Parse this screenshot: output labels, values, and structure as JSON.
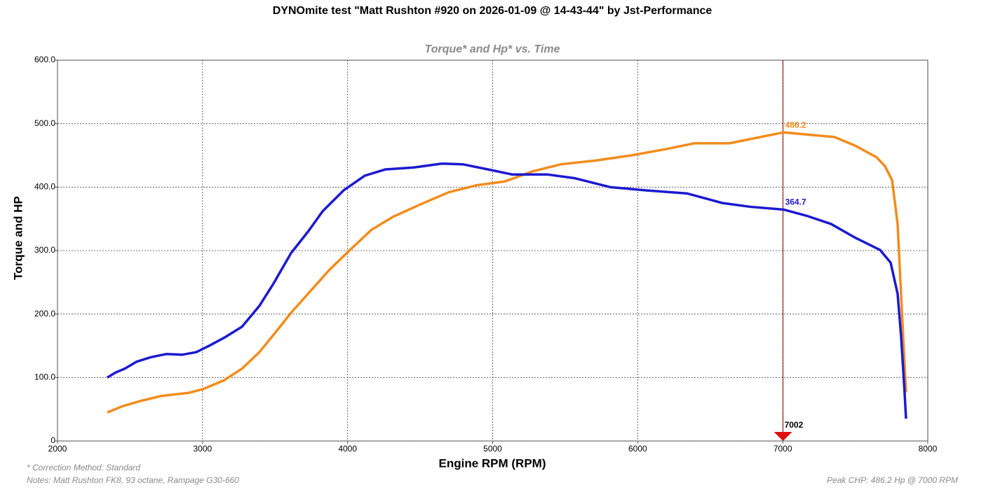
{
  "chart_data": {
    "type": "line",
    "title": "DYNOmite test \"Matt Rushton #920 on 2026-01-09 @ 14-43-44\" by Jst-Performance",
    "subtitle": "Torque* and Hp* vs. Time",
    "x_label": "Engine RPM (RPM)",
    "y_label": "Torque and HP",
    "xlim": [
      2000,
      8000
    ],
    "xticks": [
      2000,
      3000,
      4000,
      5000,
      6000,
      7000,
      8000
    ],
    "ylim": [
      0,
      600
    ],
    "yticks": [
      {
        "value": 0,
        "label": "0"
      },
      {
        "value": 100,
        "label": "100.0"
      },
      {
        "value": 200,
        "label": "200.0"
      },
      {
        "value": 300,
        "label": "300.0"
      },
      {
        "value": 400,
        "label": "400.0"
      },
      {
        "value": 500,
        "label": "500.0"
      },
      {
        "value": 600,
        "label": "600.0"
      }
    ],
    "grid": true,
    "series": [
      {
        "color": "#f28c1c",
        "x": [
          2343,
          2450,
          2571,
          2716,
          2909,
          3006,
          3151,
          3272,
          3392,
          3513,
          3610,
          3731,
          3876,
          4021,
          4166,
          4311,
          4504,
          4698,
          4891,
          5084,
          5278,
          5471,
          5713,
          5955,
          6197,
          6390,
          6632,
          6825,
          7004,
          7163,
          7357,
          7502,
          7647,
          7705,
          7754,
          7792,
          7811,
          7830,
          7850
        ],
        "values": [
          45,
          55,
          63,
          71,
          76,
          82,
          96,
          114,
          140,
          174,
          202,
          233,
          270,
          302,
          333,
          353,
          373,
          392,
          403,
          409,
          425,
          436,
          442,
          450,
          460,
          469,
          469,
          478,
          486.2,
          483,
          479,
          465,
          447,
          433,
          411,
          342,
          254,
          165,
          77
        ]
      },
      {
        "color": "#1a1ad0",
        "x": [
          2343,
          2401,
          2464,
          2546,
          2643,
          2749,
          2861,
          2957,
          3054,
          3151,
          3272,
          3392,
          3489,
          3610,
          3731,
          3828,
          3973,
          4118,
          4262,
          4456,
          4650,
          4794,
          4988,
          5133,
          5375,
          5568,
          5810,
          6052,
          6342,
          6583,
          6777,
          7004,
          7163,
          7333,
          7502,
          7671,
          7744,
          7792,
          7816,
          7840,
          7850
        ],
        "values": [
          100,
          108,
          114,
          125,
          132,
          137,
          136,
          140,
          151,
          163,
          180,
          213,
          248,
          296,
          331,
          362,
          395,
          418,
          428,
          431,
          437,
          436,
          427,
          420,
          420,
          414,
          400,
          395,
          390,
          375,
          369,
          364.7,
          355,
          342,
          320,
          301,
          281,
          232,
          165,
          77,
          35
        ]
      }
    ],
    "marker": {
      "x": 7002,
      "color": "#e01010"
    },
    "annotations": [
      {
        "value": 486.2,
        "color": "#f28c1c"
      },
      {
        "value": 364.7,
        "color": "#1a1ad0"
      }
    ],
    "notes": [
      "* Correction Method: Standard",
      "Notes: Matt Rushton FK8, 93 octane, Rampage G30-660"
    ],
    "footer_right": "Peak CHP: 486.2 Hp @ 7000 RPM"
  }
}
